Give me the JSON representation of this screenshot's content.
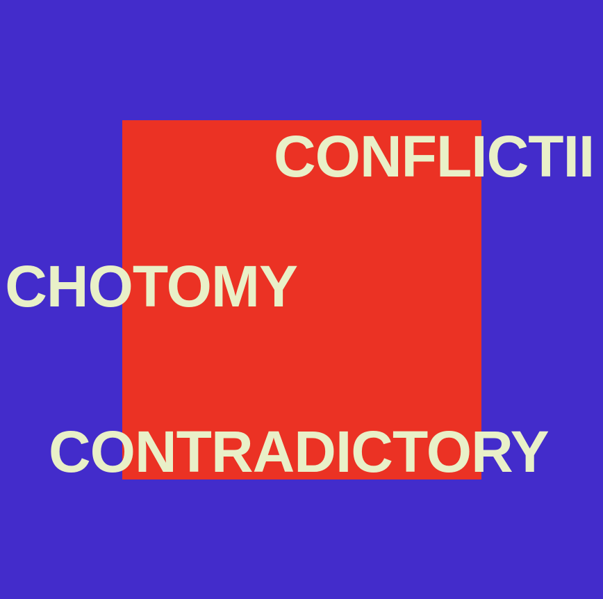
{
  "colors": {
    "background": "#432ccb",
    "square": "#eb3224",
    "text": "#e9f0c8"
  },
  "words": {
    "top": "CONFLICTII",
    "middle": "CHOTOMY",
    "bottom": "CONTRADICTORY"
  }
}
